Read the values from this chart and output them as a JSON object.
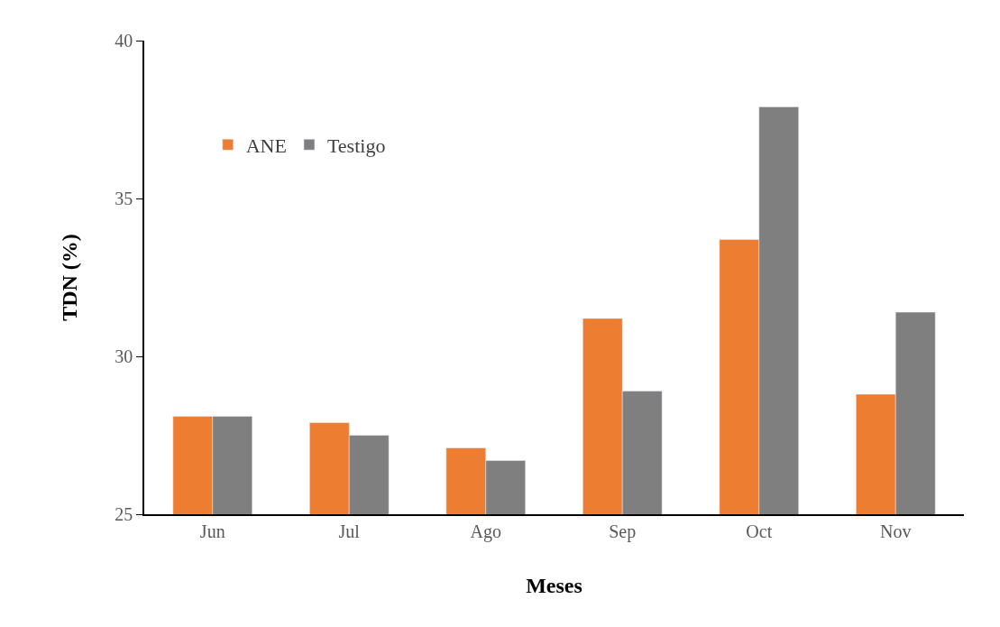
{
  "chart_data": {
    "type": "bar",
    "xlabel": "Meses",
    "ylabel": "TDN (%)",
    "categories": [
      "Jun",
      "Jul",
      "Ago",
      "Sep",
      "Oct",
      "Nov"
    ],
    "series": [
      {
        "name": "ANE",
        "color": "#ed7d31",
        "values": [
          28.1,
          27.9,
          27.1,
          31.2,
          33.7,
          28.8
        ]
      },
      {
        "name": "Testigo",
        "color": "#7f7f7f",
        "values": [
          28.1,
          27.5,
          26.7,
          28.9,
          37.9,
          31.4
        ]
      }
    ],
    "ylim": [
      25,
      40
    ],
    "yticks": [
      25,
      30,
      35,
      40
    ],
    "legend": "top left"
  }
}
